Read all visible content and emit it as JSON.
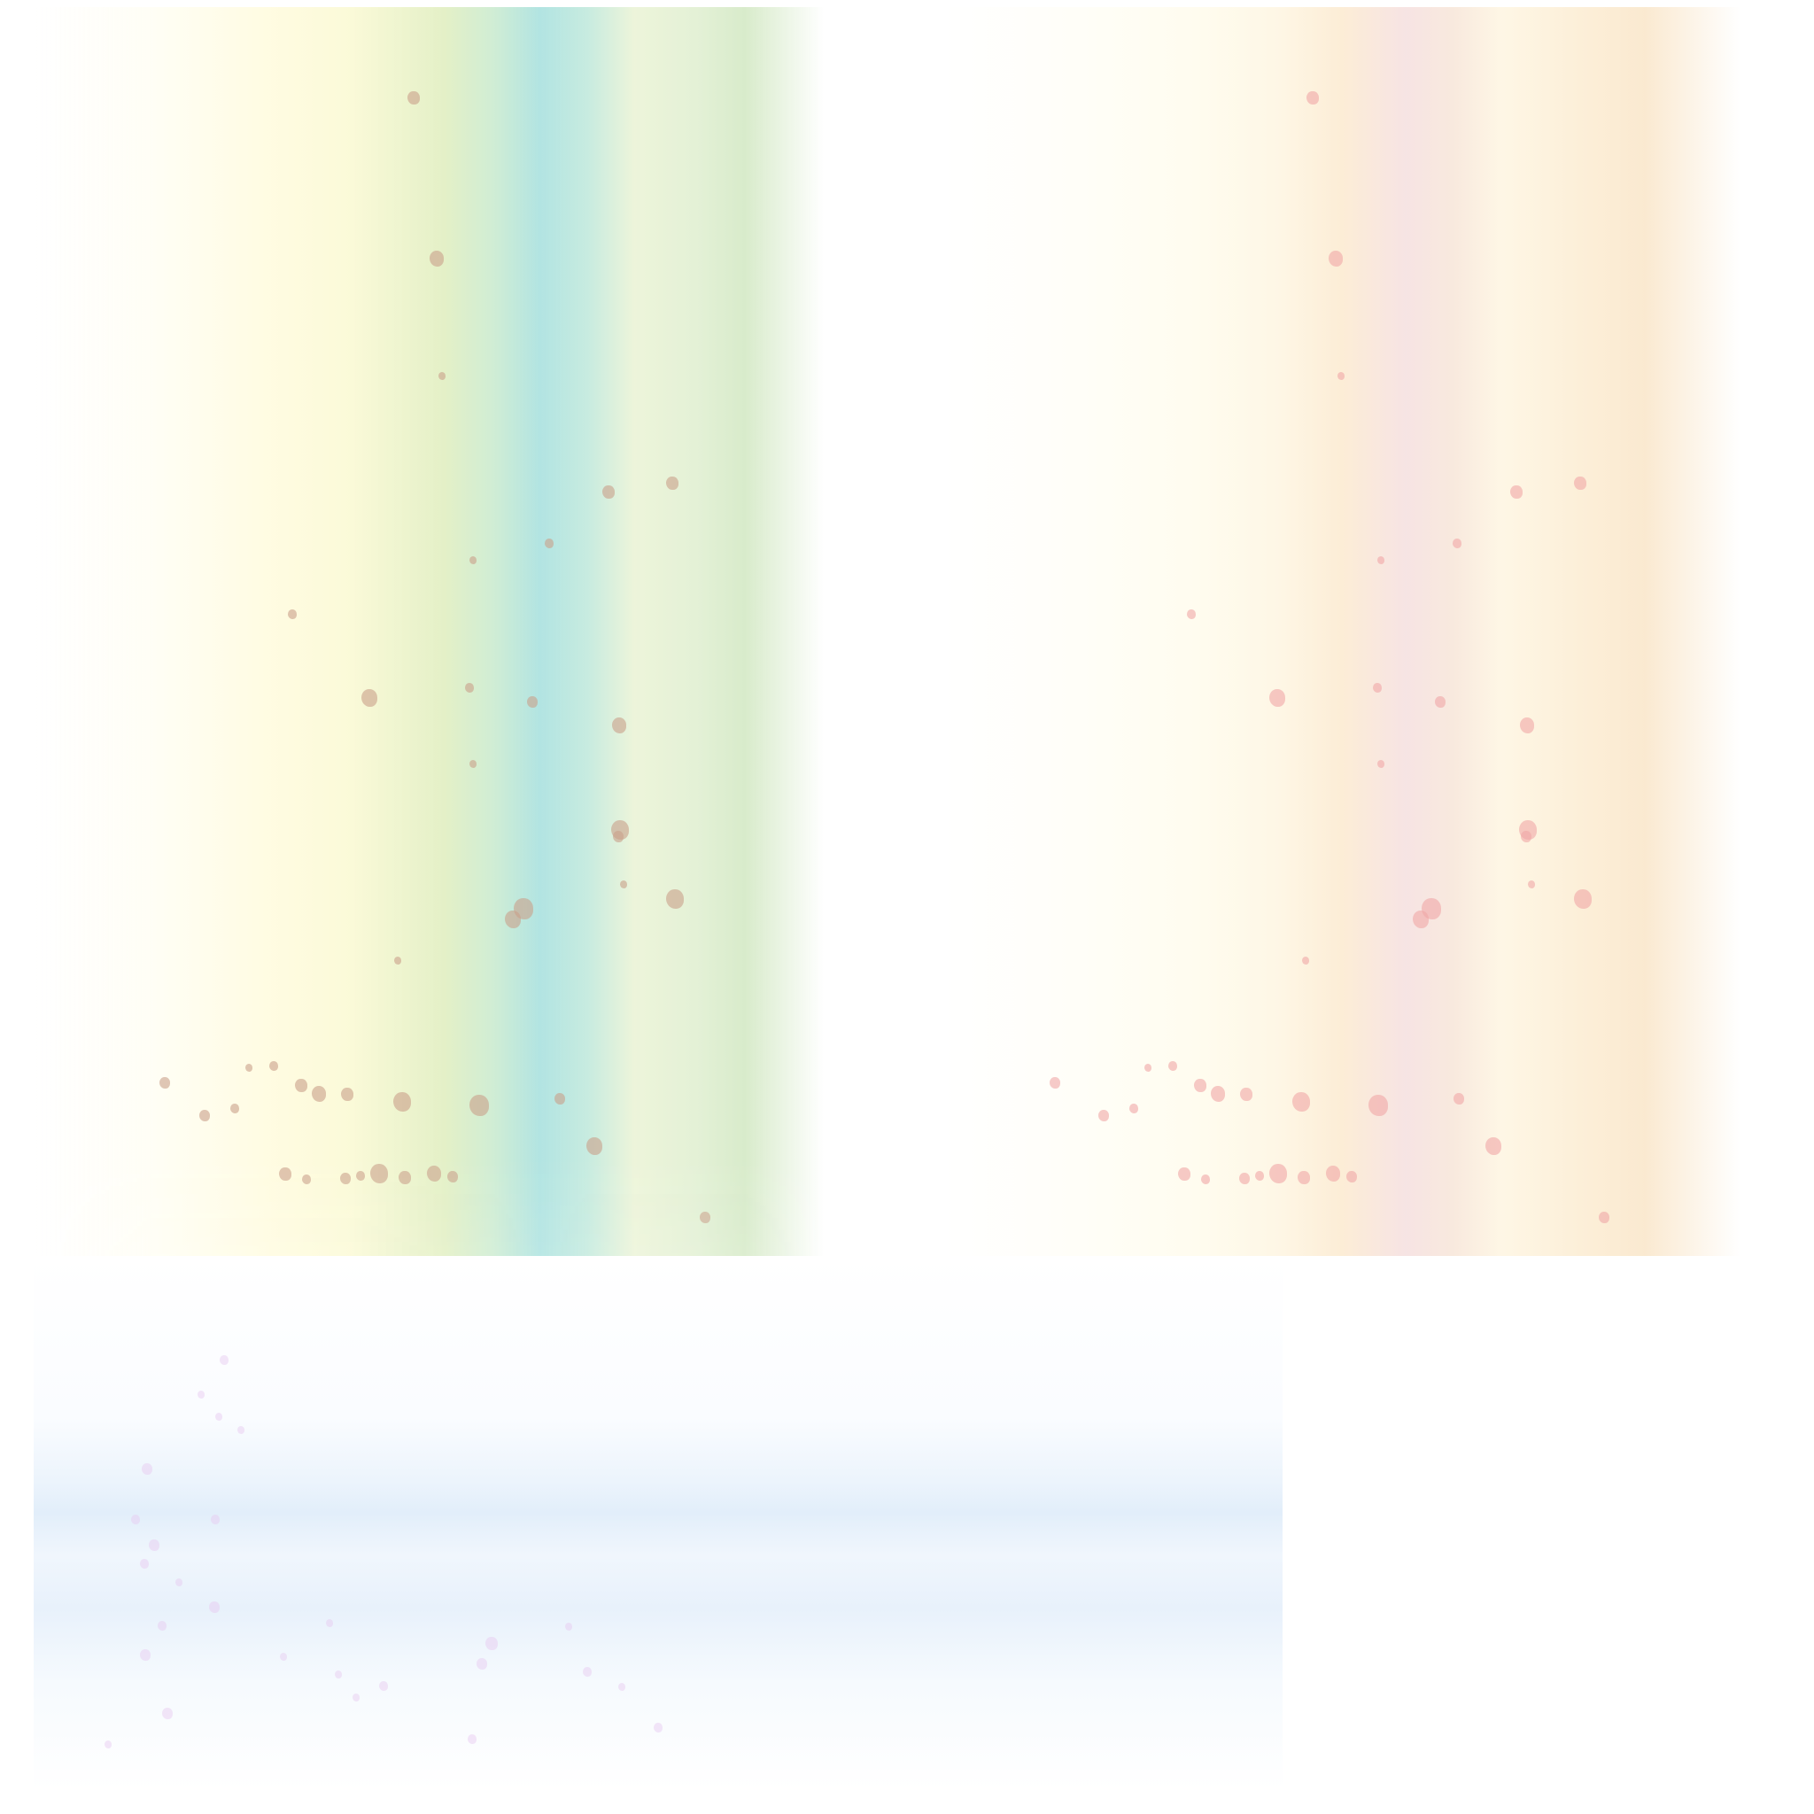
{
  "panels": [
    {
      "id": "left",
      "theme": "cool-stripes",
      "petal_color": "#c9a08a"
    },
    {
      "id": "right",
      "theme": "warm-stripes",
      "petal_color": "#f0a6a6"
    },
    {
      "id": "bottom",
      "theme": "pale-blue-bands",
      "petal_color": "#e6c8f0"
    }
  ],
  "colors": {
    "background": "#ffffff",
    "left_accent": "#b2e4e2",
    "right_accent": "#f6e2e2",
    "bottom_accent": "#e2eefa"
  }
}
